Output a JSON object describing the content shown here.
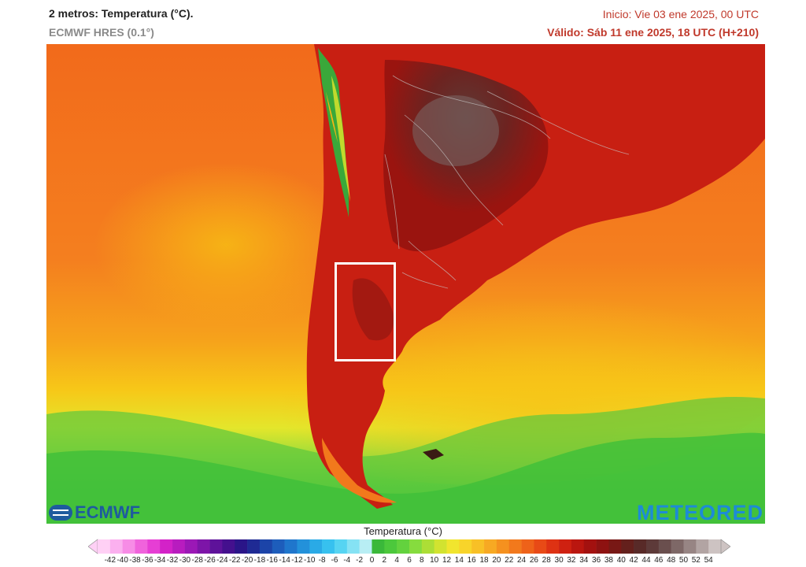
{
  "header": {
    "title": "2 metros: Temperatura (°C).",
    "model": "ECMWF HRES (0.1°)",
    "init": "Inicio: Vie 03 ene 2025, 00 UTC",
    "valid": "Válido: Sáb 11 ene 2025, 18 UTC (H+210)"
  },
  "logos": {
    "left": "ECMWF",
    "right": "METEORED"
  },
  "map_icons": [
    "ecmwf-logo-icon",
    "highlight-box"
  ],
  "colors": {
    "ocean_warm": "#f37a1f",
    "ocean_mild": "#f7b514",
    "ocean_cool": "#e8e82a",
    "ocean_cold": "#5ec93c",
    "land_hot": "#b5170f",
    "land_very_hot": "#6a2a22",
    "andes_cool": "#3aa83a"
  },
  "legend": {
    "title": "Temperatura (°C)",
    "ticks": [
      "-42",
      "-40",
      "-38",
      "-36",
      "-34",
      "-32",
      "-30",
      "-28",
      "-26",
      "-24",
      "-22",
      "-20",
      "-18",
      "-16",
      "-14",
      "-12",
      "-10",
      "-8",
      "-6",
      "-4",
      "-2",
      "0",
      "2",
      "4",
      "6",
      "8",
      "10",
      "12",
      "14",
      "16",
      "18",
      "20",
      "22",
      "24",
      "26",
      "28",
      "30",
      "32",
      "34",
      "36",
      "38",
      "40",
      "42",
      "44",
      "46",
      "48",
      "50",
      "52",
      "54"
    ],
    "colors": [
      "#ffd0f5",
      "#fbb0ef",
      "#f78ce6",
      "#f063dc",
      "#e63ed4",
      "#d322c8",
      "#b81cbf",
      "#9b18b6",
      "#7d15a8",
      "#5e129a",
      "#44108e",
      "#2a1588",
      "#1f2a94",
      "#1c44a8",
      "#1d5dbb",
      "#1f76cc",
      "#2391da",
      "#2aaae6",
      "#37c1ef",
      "#56d4f2",
      "#85e2f4",
      "#b8eef4",
      "#3ab83a",
      "#4cc83c",
      "#63d23e",
      "#86dc3e",
      "#acde36",
      "#d2e330",
      "#f1e52e",
      "#f8d42a",
      "#f8c026",
      "#f7a923",
      "#f5911f",
      "#f2791c",
      "#ee6219",
      "#e84a16",
      "#de3213",
      "#cf2111",
      "#ba160f",
      "#a3110f",
      "#8e1211",
      "#781815",
      "#64201c",
      "#582a28",
      "#5d3a39",
      "#6a4f4e",
      "#7e6867",
      "#978584",
      "#b2a4a3",
      "#cdc3c2"
    ]
  }
}
